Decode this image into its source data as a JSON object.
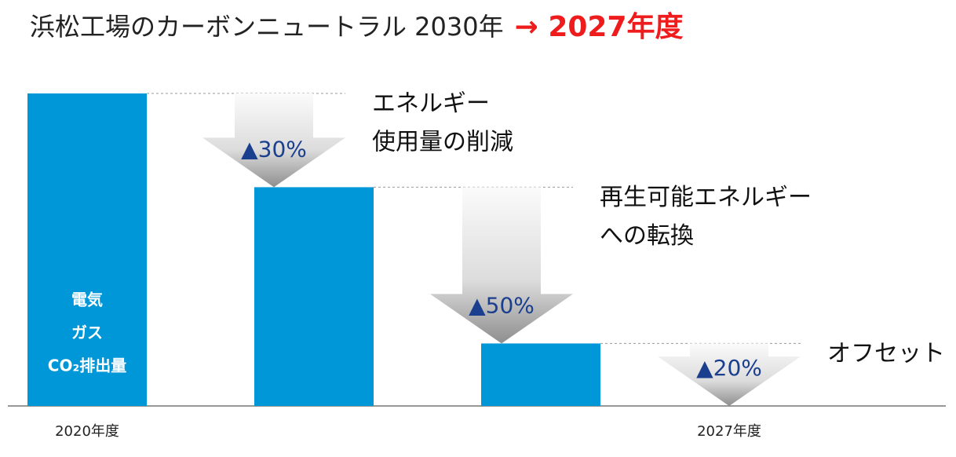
{
  "chart_data": {
    "type": "waterfall",
    "title": "浜松工場のカーボンニュートラル 2030年",
    "title_highlight": "→ 2027年度",
    "categories": [
      "2020年度",
      null,
      null,
      "2027年度"
    ],
    "values": [
      100,
      -30,
      -50,
      -20
    ],
    "value_labels": [
      null,
      "▲30%",
      "▲50%",
      "▲20%"
    ],
    "annotations": [
      [
        "電気",
        "ガス",
        "CO₂排出量"
      ],
      [
        "エネルギー",
        "使用量の削減"
      ],
      [
        "再生可能エネルギー",
        "への転換"
      ],
      [
        "オフセット"
      ]
    ],
    "color": "#0097d9",
    "label_color": "#1b3f8f",
    "highlight_color": "#ee1c1c"
  }
}
